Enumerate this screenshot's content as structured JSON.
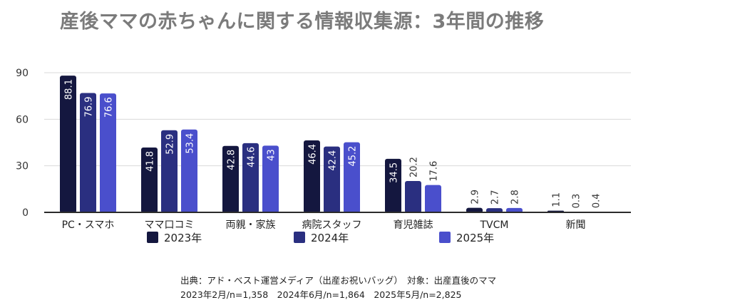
{
  "title": "産後ママの赤ちゃんに関する情報収集源：3年間の推移",
  "chart_data": {
    "type": "bar",
    "categories": [
      "PC・スマホ",
      "ママ口コミ",
      "両親・家族",
      "病院スタッフ",
      "育児雑誌",
      "TVCM",
      "新聞"
    ],
    "series": [
      {
        "name": "2023年",
        "color": "#14173f",
        "values": [
          88.1,
          41.8,
          42.8,
          46.4,
          34.5,
          2.9,
          1.1
        ]
      },
      {
        "name": "2024年",
        "color": "#2a2f80",
        "values": [
          76.9,
          52.9,
          44.6,
          42.4,
          20.2,
          2.7,
          0.3
        ]
      },
      {
        "name": "2025年",
        "color": "#4a4fcc",
        "values": [
          76.6,
          53.4,
          43,
          45.2,
          17.6,
          2.8,
          0.4
        ]
      }
    ],
    "value_labels": [
      [
        "88.1",
        "41.8",
        "42.8",
        "46.4",
        "34.5",
        "2.9",
        "1.1"
      ],
      [
        "76.9",
        "52.9",
        "44.6",
        "42.4",
        "20.2",
        "2.7",
        "0.3"
      ],
      [
        "76.6",
        "53.4",
        "43",
        "45.2",
        "17.6",
        "2.8",
        "0.4"
      ]
    ],
    "ylim": [
      0,
      90
    ],
    "yticks": [
      0,
      30,
      60,
      90
    ],
    "xlabel": "",
    "ylabel": "",
    "grid": true,
    "legend_position": "bottom",
    "value_labels_rotated": true
  },
  "source": {
    "line1": "出典：アド・ベスト運営メディア（出産お祝いバッグ）　対象：出産直後のママ",
    "line2": "2023年2月/n=1,358　2024年6月/n=1,864　2025年5月/n=2,825"
  }
}
